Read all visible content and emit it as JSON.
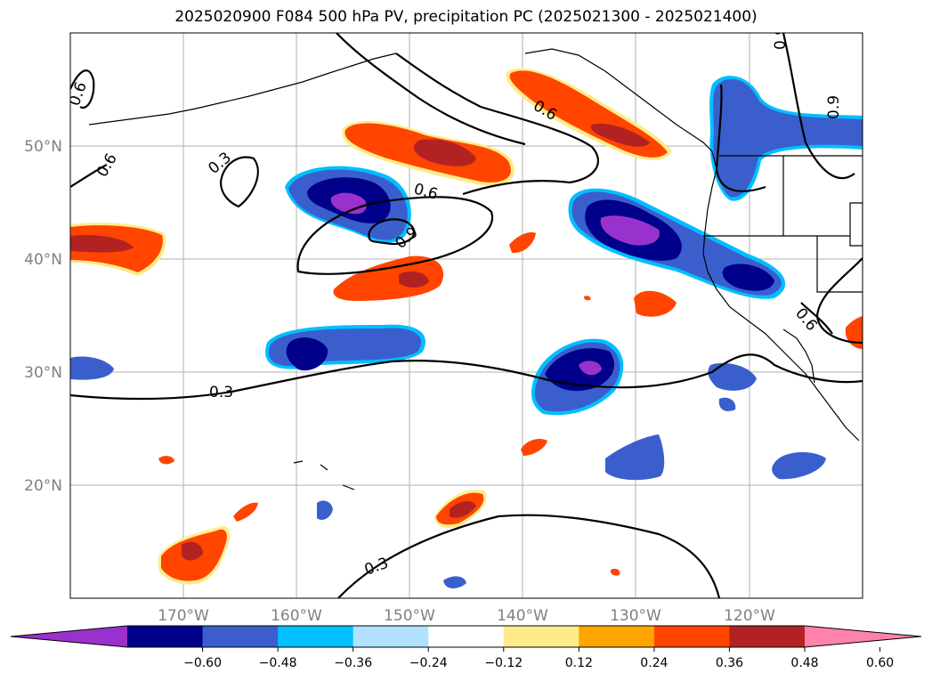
{
  "title": "2025020900 F084 500 hPa PV, precipitation PC (2025021300 - 2025021400)",
  "map": {
    "projection": "PlateCarree",
    "lon_range": [
      -180,
      -110
    ],
    "lat_range": [
      10,
      60
    ],
    "gridlines": true,
    "lat_labels": [
      "50°N",
      "40°N",
      "30°N",
      "20°N"
    ],
    "lon_labels": [
      "170°W",
      "160°W",
      "150°W",
      "140°W",
      "130°W",
      "120°W"
    ]
  },
  "contours": {
    "variable": "500 hPa PV",
    "levels_labeled": [
      "0.3",
      "0.6",
      "0.9"
    ]
  },
  "colorbar": {
    "ticks": [
      "−0.60",
      "−0.48",
      "−0.36",
      "−0.24",
      "−0.12",
      "0.12",
      "0.24",
      "0.36",
      "0.48",
      "0.60"
    ],
    "colors": [
      "#9932cc",
      "#00008b",
      "#3a5fcd",
      "#00bfff",
      "#b0e2ff",
      "#ffffff",
      "#ffeb8a",
      "#ffa500",
      "#ff4500",
      "#b22222",
      "#ff82ab"
    ],
    "extend": "both"
  }
}
